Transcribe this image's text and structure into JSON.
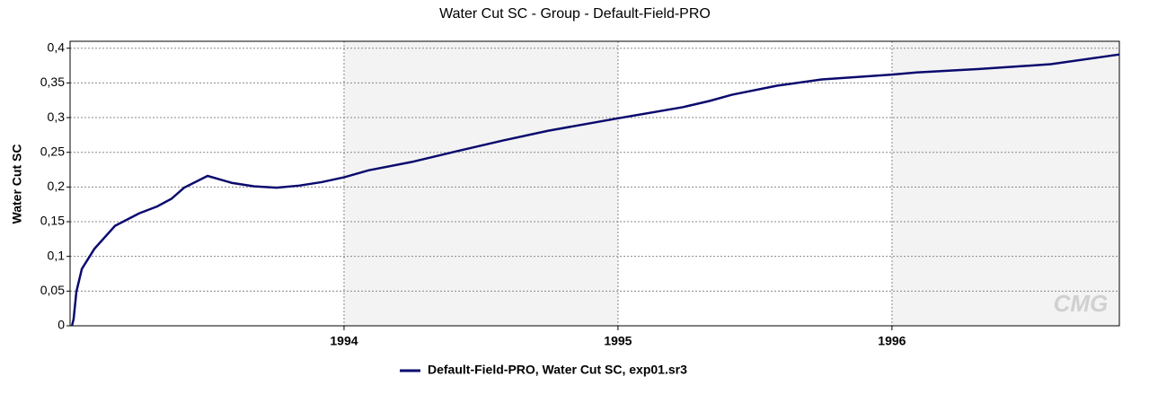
{
  "chart_data": {
    "type": "line",
    "title": "Water Cut SC - Group - Default-Field-PRO",
    "y_label": "Water Cut SC",
    "watermark": "CMG",
    "x": [
      1993.007,
      1993.013,
      1993.023,
      1993.043,
      1993.089,
      1993.164,
      1993.252,
      1993.318,
      1993.37,
      1993.416,
      1993.502,
      1993.59,
      1993.672,
      1993.754,
      1993.836,
      1993.918,
      1994.0,
      1994.089,
      1994.246,
      1994.416,
      1994.58,
      1994.744,
      1995.0,
      1995.236,
      1995.334,
      1995.416,
      1995.58,
      1995.744,
      1996.0,
      1996.089,
      1996.318,
      1996.58,
      1996.83
    ],
    "series": [
      {
        "name": "Default-Field-PRO, Water Cut SC, exp01.sr3",
        "color": "#0a0a6e",
        "values": [
          0,
          0.01,
          0.049,
          0.082,
          0.111,
          0.144,
          0.162,
          0.172,
          0.183,
          0.199,
          0.216,
          0.206,
          0.201,
          0.199,
          0.202,
          0.207,
          0.214,
          0.224,
          0.236,
          0.252,
          0.267,
          0.281,
          0.299,
          0.315,
          0.324,
          0.333,
          0.346,
          0.355,
          0.362,
          0.365,
          0.37,
          0.377,
          0.391
        ]
      }
    ],
    "xlim": [
      1993.0,
      1996.83
    ],
    "xticks": [
      1994,
      1995,
      1996
    ],
    "ylim": [
      0,
      0.41
    ],
    "yticks": [
      0,
      {
        "value": 0.05,
        "label": "0,05"
      },
      {
        "value": 0.1,
        "label": "0,1"
      },
      {
        "value": 0.15,
        "label": "0,15"
      },
      {
        "value": 0.2,
        "label": "0,2"
      },
      {
        "value": 0.25,
        "label": "0,25"
      },
      {
        "value": 0.3,
        "label": "0,3"
      },
      {
        "value": 0.35,
        "label": "0,35"
      },
      {
        "value": 0.4,
        "label": "0,4"
      }
    ],
    "grid": true,
    "legend": "bottom"
  }
}
